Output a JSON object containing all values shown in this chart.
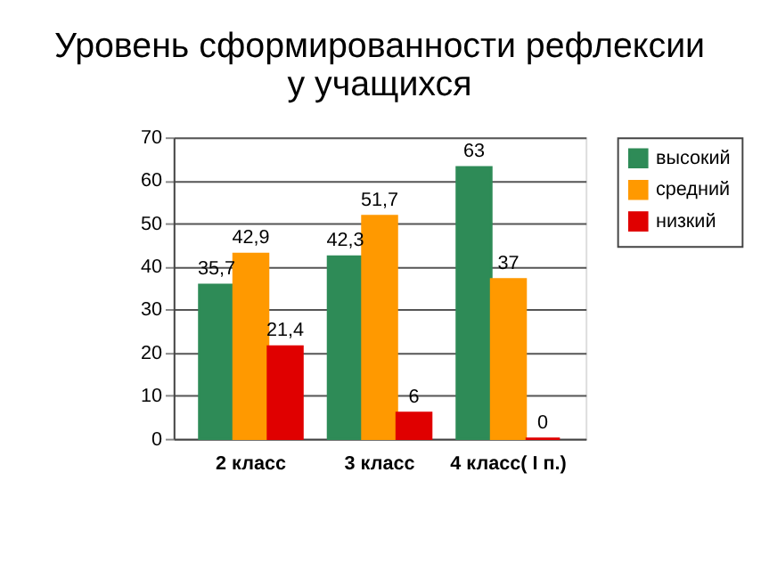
{
  "chart_data": {
    "type": "bar",
    "title": "Уровень сформированности рефлексии  у учащихся",
    "categories": [
      "2 класс",
      "3 класс",
      "4 класс( I п.)"
    ],
    "series": [
      {
        "name": "высокий",
        "color": "#2e8b57",
        "values": [
          35.7,
          42.3,
          63
        ],
        "value_labels": [
          "35,7",
          "42,3",
          "63"
        ]
      },
      {
        "name": "средний",
        "color": "#ff9900",
        "values": [
          42.9,
          51.7,
          37
        ],
        "value_labels": [
          "42,9",
          "51,7",
          "37"
        ]
      },
      {
        "name": "низкий",
        "color": "#e00000",
        "values": [
          21.4,
          6,
          0
        ],
        "value_labels": [
          "21,4",
          "6",
          "0"
        ]
      }
    ],
    "ylim": [
      0,
      70
    ],
    "yticks": [
      0,
      10,
      20,
      30,
      40,
      50,
      60,
      70
    ],
    "grid": "y",
    "legend": "right"
  }
}
